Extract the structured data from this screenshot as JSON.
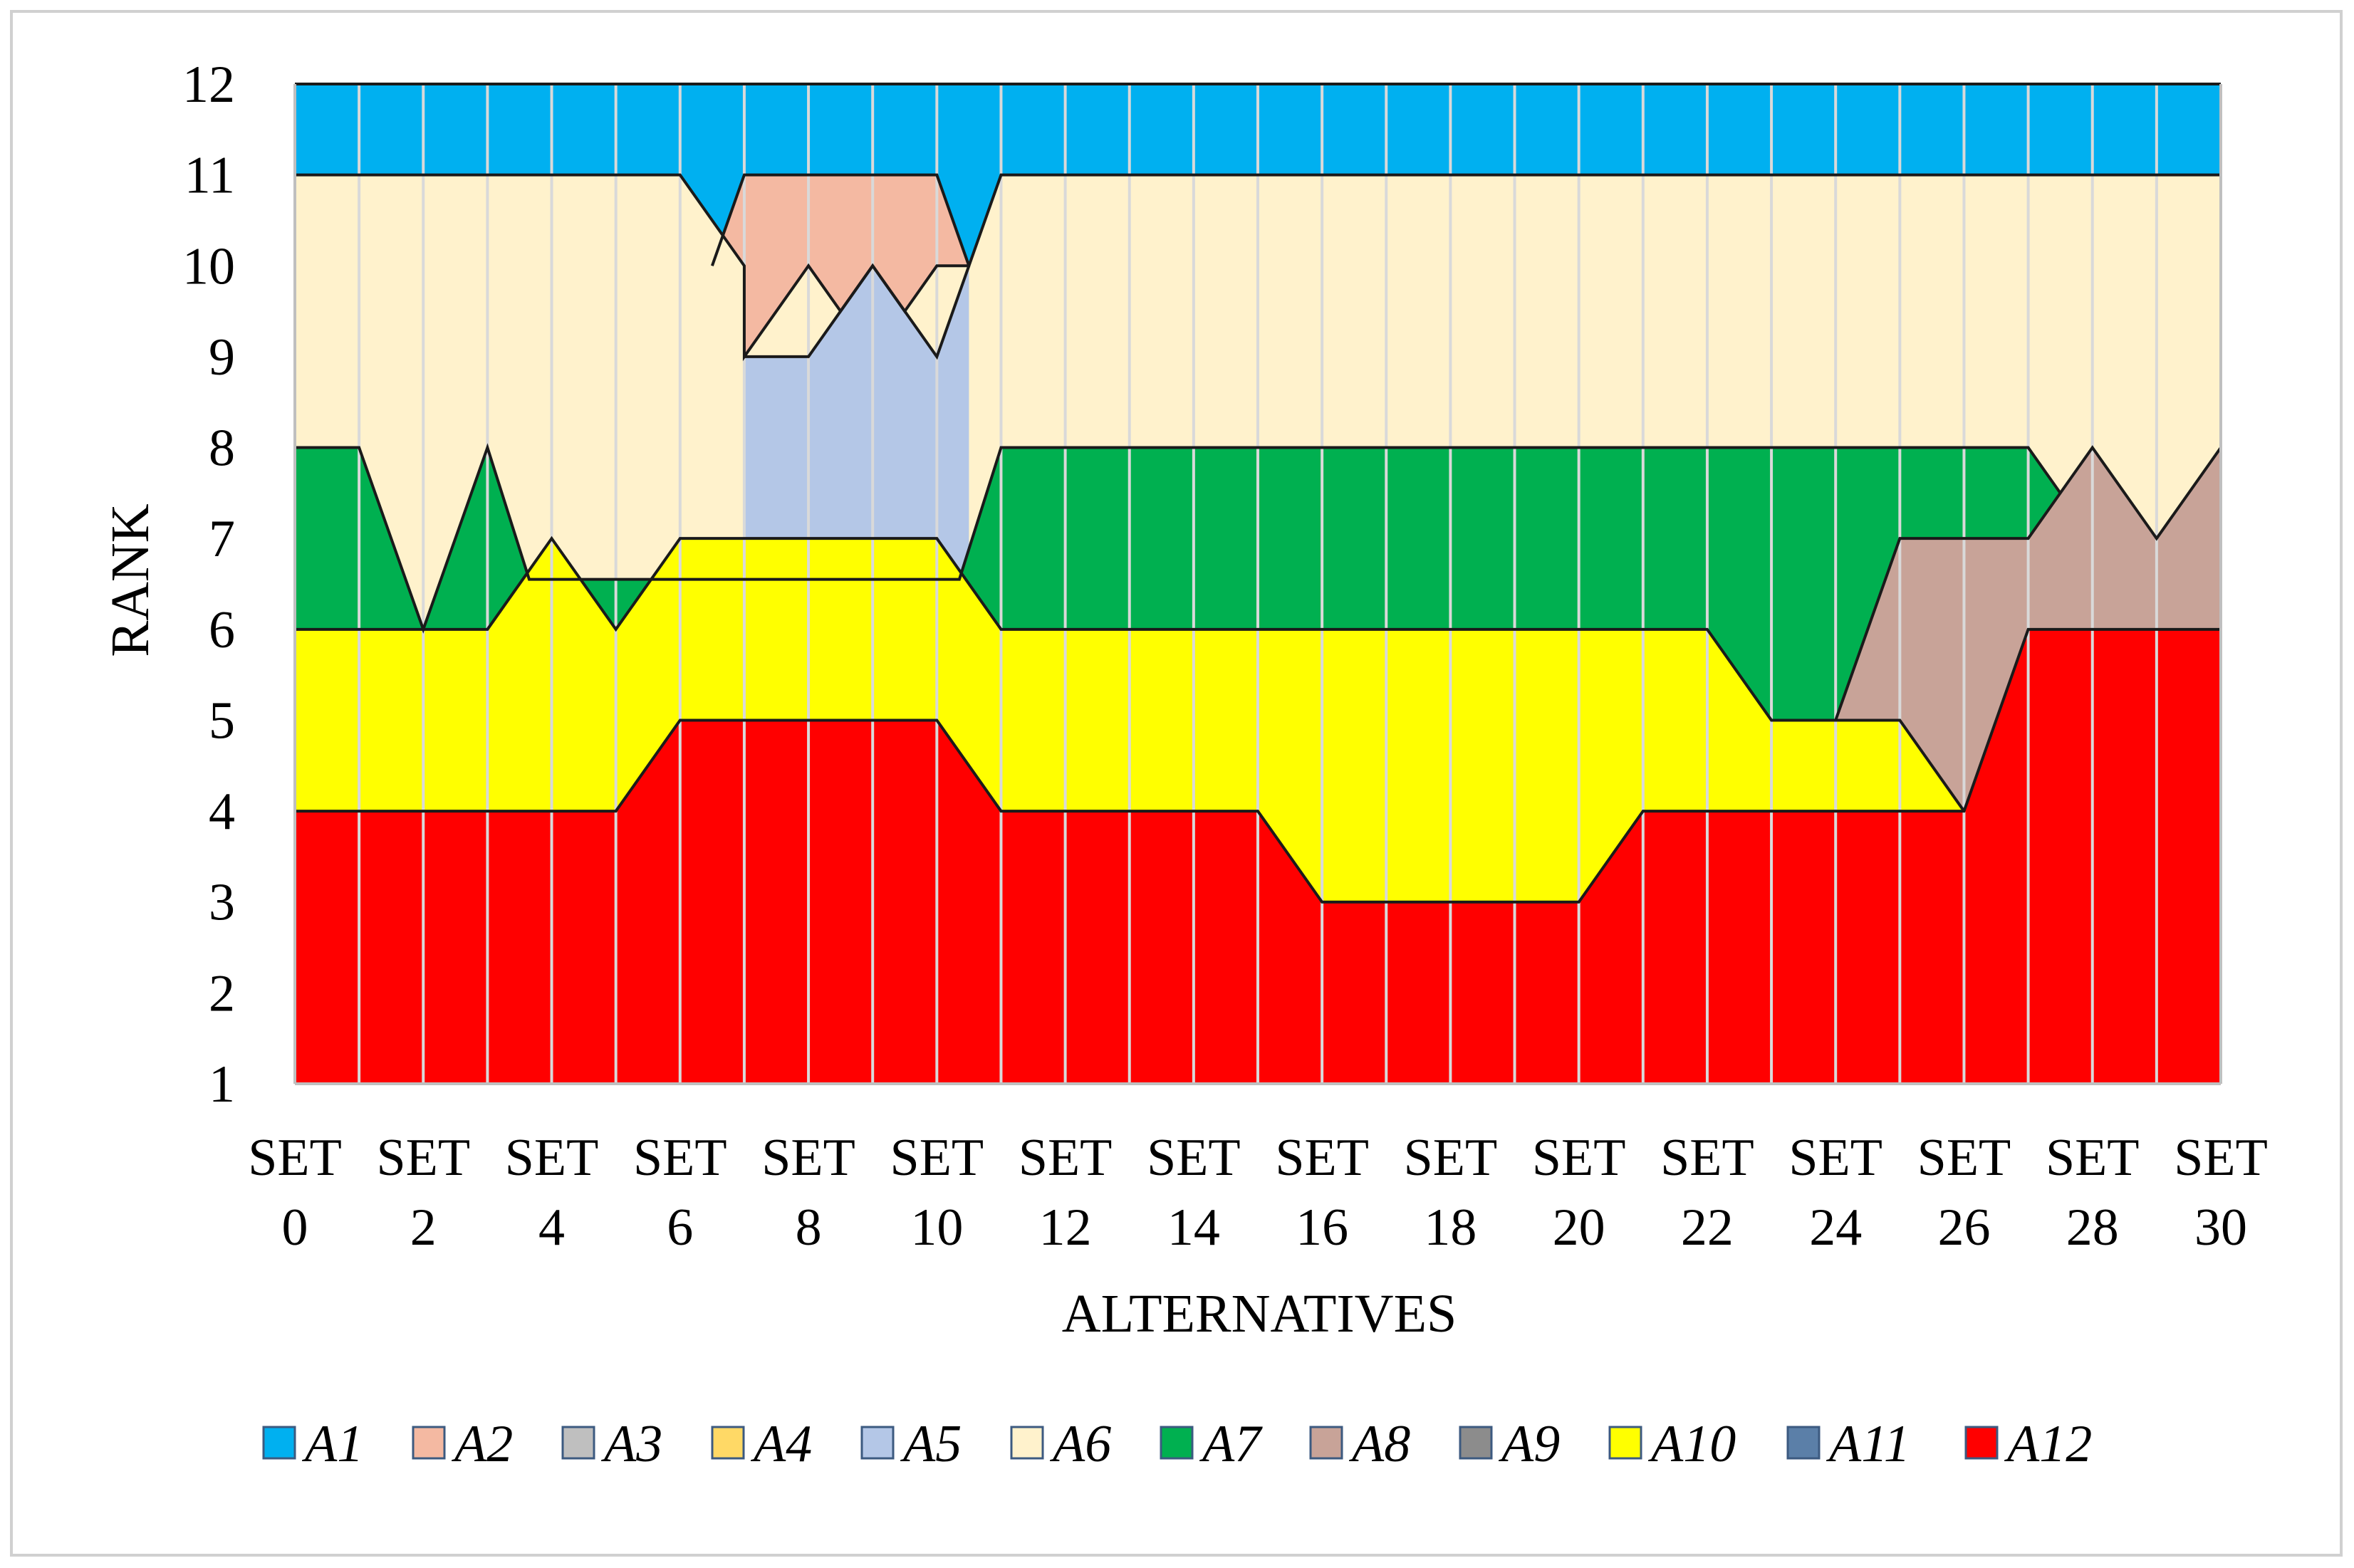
{
  "chart_data": {
    "type": "area",
    "title": "",
    "xlabel": "ALTERNATIVES",
    "ylabel": "RANK",
    "ylim": [
      1,
      12
    ],
    "yticks": [
      1,
      2,
      3,
      4,
      5,
      6,
      7,
      8,
      9,
      10,
      11,
      12
    ],
    "xcategory_prefix": "SET",
    "xticks": [
      0,
      2,
      4,
      6,
      8,
      10,
      12,
      14,
      16,
      18,
      20,
      22,
      24,
      26,
      28,
      30
    ],
    "grid": "vertical",
    "legend_position": "bottom",
    "layers": [
      {
        "name": "A12",
        "color": "#FF0000",
        "pts": [
          [
            0,
            4
          ],
          [
            5,
            4
          ],
          [
            6,
            5
          ],
          [
            10,
            5
          ],
          [
            11,
            4
          ],
          [
            15,
            4
          ],
          [
            16,
            3
          ],
          [
            20,
            3
          ],
          [
            21,
            4
          ],
          [
            26,
            4
          ],
          [
            27,
            6
          ],
          [
            30,
            6
          ]
        ]
      },
      {
        "name": "A10",
        "color": "#FFFF00",
        "pts": [
          [
            0,
            6
          ],
          [
            3,
            6
          ],
          [
            4,
            7
          ],
          [
            5,
            6
          ],
          [
            6,
            7
          ],
          [
            10,
            7
          ],
          [
            11,
            6
          ],
          [
            22,
            6
          ],
          [
            23,
            5
          ],
          [
            25,
            5
          ],
          [
            26,
            4
          ]
        ]
      },
      {
        "name": "A8",
        "color": "#C8A398",
        "pts": [
          [
            24,
            5
          ],
          [
            25,
            7
          ],
          [
            27,
            7
          ],
          [
            28,
            8
          ],
          [
            29,
            7
          ],
          [
            30,
            8
          ]
        ]
      },
      {
        "name": "A7",
        "color": "#00B050",
        "pts": [
          [
            0,
            8
          ],
          [
            1,
            8
          ],
          [
            2,
            6
          ],
          [
            3,
            8
          ],
          [
            3.65,
            6.55
          ],
          [
            10.35,
            6.55
          ],
          [
            11,
            8
          ],
          [
            27,
            8
          ],
          [
            27.5,
            7.5
          ]
        ]
      },
      {
        "name": "A5",
        "color": "#B4C7E7",
        "pts": [
          [
            7,
            9
          ],
          [
            8,
            9
          ],
          [
            8.5,
            9.5
          ],
          [
            9,
            10
          ],
          [
            9.5,
            9.5
          ],
          [
            10,
            9
          ],
          [
            10.5,
            10
          ]
        ]
      },
      {
        "name": "A6",
        "color": "#FFF2CC",
        "pts": [
          [
            0,
            11
          ],
          [
            6,
            11
          ],
          [
            7,
            10
          ],
          [
            7,
            9
          ],
          [
            8,
            10
          ],
          [
            8.5,
            9.5
          ],
          [
            9,
            10
          ],
          [
            9.5,
            9.5
          ],
          [
            10,
            10
          ],
          [
            10.5,
            10
          ],
          [
            11,
            11
          ],
          [
            30,
            11
          ]
        ]
      },
      {
        "name": "A2",
        "color": "#F4B9A2",
        "pts": [
          [
            6.5,
            10
          ],
          [
            7,
            11
          ],
          [
            10,
            11
          ],
          [
            10.5,
            10
          ]
        ]
      },
      {
        "name": "A1",
        "color": "#00B0F0",
        "pts": [
          [
            0,
            12
          ],
          [
            30,
            12
          ]
        ]
      }
    ]
  },
  "legend": [
    {
      "label": "A1",
      "color": "#00B0F0"
    },
    {
      "label": "A2",
      "color": "#F4B9A2"
    },
    {
      "label": "A3",
      "color": "#BFBFBF"
    },
    {
      "label": "A4",
      "color": "#FFD966"
    },
    {
      "label": "A5",
      "color": "#B4C7E7"
    },
    {
      "label": "A6",
      "color": "#FFF2CC"
    },
    {
      "label": "A7",
      "color": "#00B050"
    },
    {
      "label": "A8",
      "color": "#C8A398"
    },
    {
      "label": "A9",
      "color": "#8C8C8C"
    },
    {
      "label": "A10",
      "color": "#FFFF00"
    },
    {
      "label": "A11",
      "color": "#5B7FA8"
    },
    {
      "label": "A12",
      "color": "#FF0000"
    }
  ]
}
